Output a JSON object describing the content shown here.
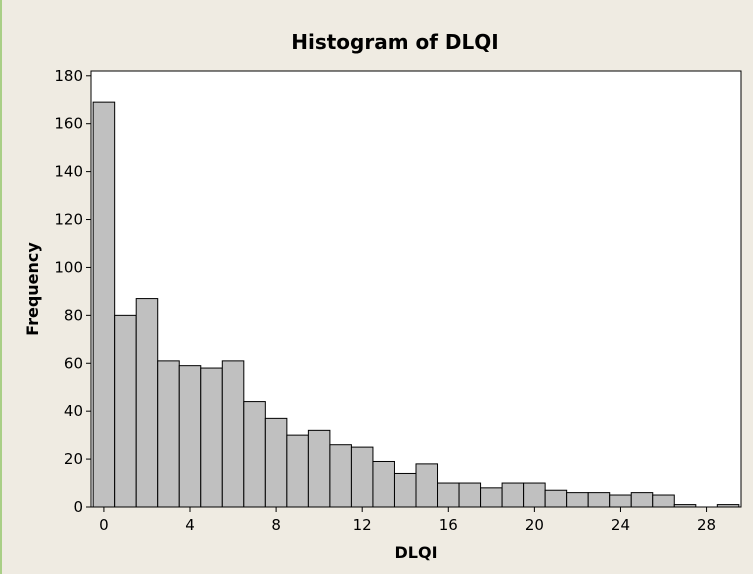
{
  "chart_data": {
    "type": "bar",
    "title": "Histogram of DLQI",
    "xlabel": "DLQI",
    "ylabel": "Frequency",
    "bin_width": 1,
    "x": [
      0,
      1,
      2,
      3,
      4,
      5,
      6,
      7,
      8,
      9,
      10,
      11,
      12,
      13,
      14,
      15,
      16,
      17,
      18,
      19,
      20,
      21,
      22,
      23,
      24,
      25,
      26,
      27,
      28,
      29
    ],
    "values": [
      169,
      80,
      87,
      61,
      59,
      58,
      61,
      44,
      37,
      30,
      32,
      26,
      25,
      19,
      14,
      18,
      10,
      10,
      8,
      10,
      10,
      7,
      6,
      6,
      5,
      6,
      5,
      1,
      0,
      1
    ],
    "xlim": [
      -0.6,
      29.6
    ],
    "ylim": [
      0,
      182
    ],
    "xticks": [
      0,
      4,
      8,
      12,
      16,
      20,
      24,
      28
    ],
    "yticks": [
      0,
      20,
      40,
      60,
      80,
      100,
      120,
      140,
      160,
      180
    ],
    "grid": false,
    "bar_fill": "#c0c0c0",
    "bar_stroke": "#000000",
    "plot_background": "#ffffff",
    "figure_background": "#efebe2"
  }
}
